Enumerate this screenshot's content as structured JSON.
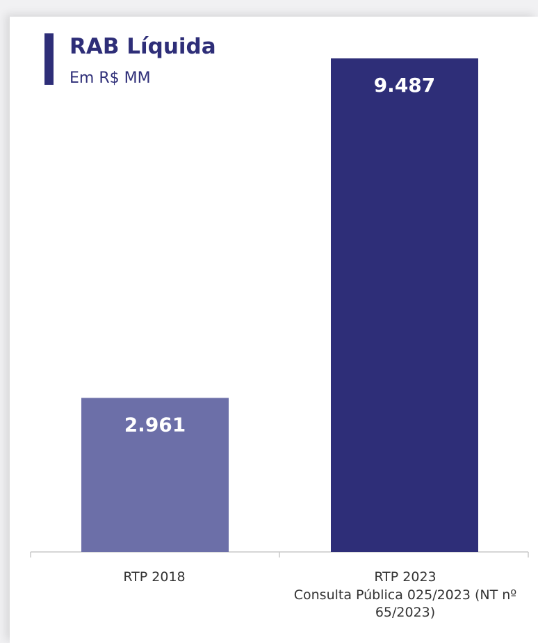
{
  "chart_data": {
    "type": "bar",
    "title": "RAB Líquida",
    "subtitle": "Em R$ MM",
    "categories": [
      "RTP 2018",
      "RTP 2023\nConsulta Pública 025/2023 (NT nº 65/2023)"
    ],
    "values": [
      2961,
      9487
    ],
    "value_labels": [
      "2.961",
      "9.487"
    ],
    "ylim": [
      0,
      9487
    ],
    "grid": false,
    "legend": "none",
    "bar_colors": [
      "#6c6fa8",
      "#2e2e78"
    ],
    "label_color": "#ffffff"
  },
  "colors": {
    "accent": "#2e2e78",
    "background": "#ffffff"
  }
}
